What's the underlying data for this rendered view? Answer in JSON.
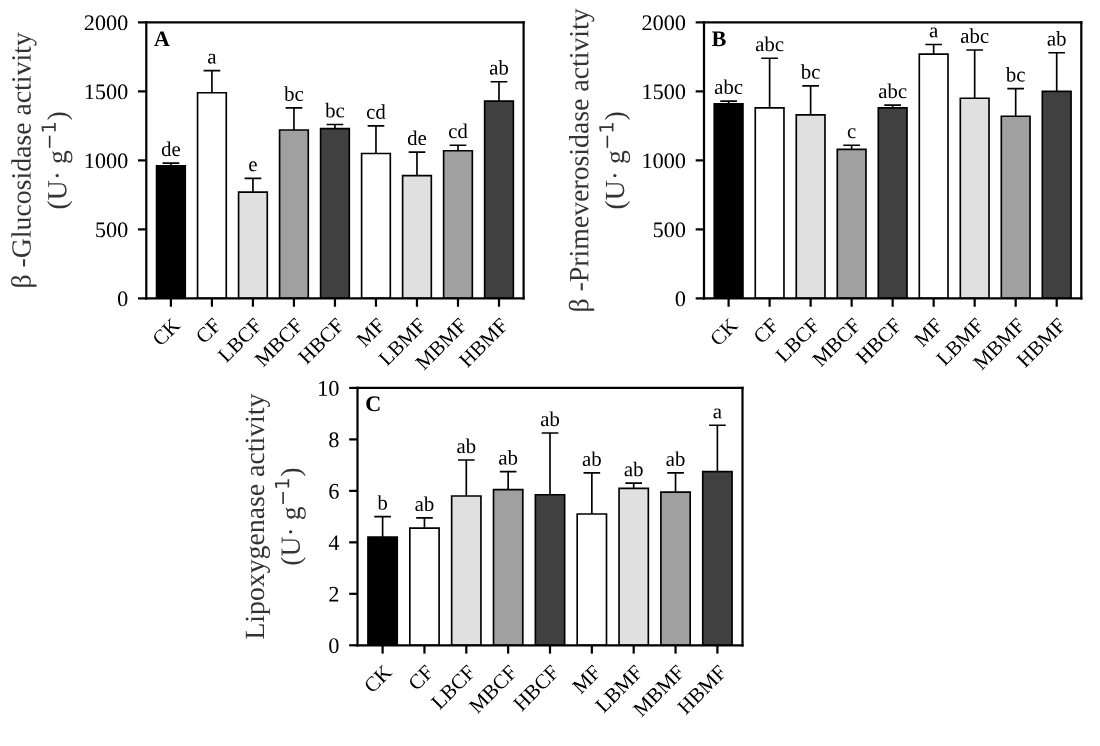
{
  "chart_data": [
    {
      "type": "bar",
      "ylabel": "β -Glucosidase activity\n(U· g$^{−1}$)",
      "categories": [
        "CK",
        "CF",
        "LBCF",
        "MBCF",
        "HBCF",
        "MF",
        "LBMF",
        "MBMF",
        "HBMF"
      ],
      "values": [
        960,
        1490,
        770,
        1220,
        1230,
        1050,
        890,
        1070,
        1430
      ],
      "errors": [
        20,
        160,
        100,
        160,
        30,
        200,
        170,
        40,
        140
      ],
      "colors": [
        "#000000",
        "#ffffff",
        "#e0e0e0",
        "#a0a0a0",
        "#404040",
        "#ffffff",
        "#e0e0e0",
        "#a0a0a0",
        "#404040"
      ],
      "ylim": [
        0,
        2000
      ],
      "yticks": [
        0,
        500,
        1000,
        1500,
        2000
      ],
      "annotations": [
        "A",
        "de",
        "a",
        "e",
        "bc",
        "bc",
        "cd",
        "de",
        "cd",
        "ab"
      ]
    },
    {
      "type": "bar",
      "ylabel": "β -Primeverosidase activity\n(U· g$^{−1}$)",
      "categories": [
        "CK",
        "CF",
        "LBCF",
        "MBCF",
        "HBCF",
        "MF",
        "LBMF",
        "MBMF",
        "HBMF"
      ],
      "values": [
        1410,
        1380,
        1330,
        1080,
        1380,
        1770,
        1450,
        1320,
        1500
      ],
      "errors": [
        20,
        360,
        210,
        30,
        20,
        70,
        350,
        200,
        280
      ],
      "colors": [
        "#000000",
        "#ffffff",
        "#e0e0e0",
        "#a0a0a0",
        "#404040",
        "#ffffff",
        "#e0e0e0",
        "#a0a0a0",
        "#404040"
      ],
      "ylim": [
        0,
        2000
      ],
      "yticks": [
        0,
        500,
        1000,
        1500,
        2000
      ],
      "annotations": [
        "B",
        "abc",
        "abc",
        "bc",
        "c",
        "abc",
        "a",
        "abc",
        "bc",
        "ab"
      ]
    },
    {
      "type": "bar",
      "ylabel": "Lipoxygenase activity\n(U· g$^{−1}$)",
      "categories": [
        "CK",
        "CF",
        "LBCF",
        "MBCF",
        "HBCF",
        "MF",
        "LBMF",
        "MBMF",
        "HBMF"
      ],
      "values": [
        4.2,
        4.55,
        5.8,
        6.05,
        5.85,
        5.1,
        6.1,
        5.95,
        6.75
      ],
      "errors": [
        0.8,
        0.4,
        1.4,
        0.7,
        2.4,
        1.6,
        0.2,
        0.75,
        1.8
      ],
      "colors": [
        "#000000",
        "#ffffff",
        "#e0e0e0",
        "#a0a0a0",
        "#404040",
        "#ffffff",
        "#e0e0e0",
        "#a0a0a0",
        "#404040"
      ],
      "ylim": [
        0,
        10
      ],
      "yticks": [
        0,
        2,
        4,
        6,
        8,
        10
      ],
      "annotations": [
        "C",
        "b",
        "ab",
        "ab",
        "ab",
        "ab",
        "ab",
        "ab",
        "ab",
        "a"
      ]
    }
  ]
}
